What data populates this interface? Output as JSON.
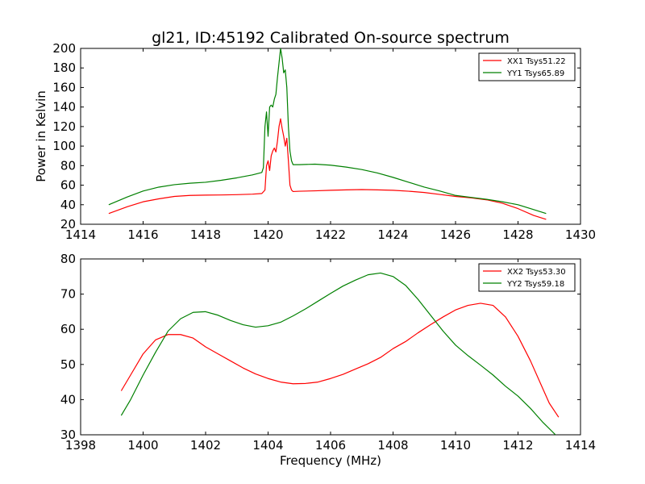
{
  "chart_data": [
    {
      "type": "line",
      "title": "gl21, ID:45192 Calibrated On-source spectrum",
      "xlabel": "",
      "ylabel": "Power in Kelvin",
      "xlim": [
        1414,
        1430
      ],
      "ylim": [
        20,
        200
      ],
      "xticks": [
        "1414",
        "1416",
        "1418",
        "1420",
        "1422",
        "1424",
        "1426",
        "1428",
        "1430"
      ],
      "yticks": [
        "20",
        "40",
        "60",
        "80",
        "100",
        "120",
        "140",
        "160",
        "180",
        "200"
      ],
      "grid": false,
      "legend_position": "top-right",
      "series": [
        {
          "name": "XX1 Tsys51.22",
          "color": "#ff0000",
          "points": [
            [
              1414.9,
              31
            ],
            [
              1415.5,
              38
            ],
            [
              1416.0,
              43
            ],
            [
              1416.5,
              46
            ],
            [
              1417.0,
              48.5
            ],
            [
              1417.5,
              49.5
            ],
            [
              1418.0,
              49.8
            ],
            [
              1418.5,
              50
            ],
            [
              1419.0,
              50.3
            ],
            [
              1419.5,
              50.8
            ],
            [
              1419.8,
              51.5
            ],
            [
              1419.9,
              55
            ],
            [
              1419.95,
              80
            ],
            [
              1420.0,
              85
            ],
            [
              1420.05,
              75
            ],
            [
              1420.1,
              90
            ],
            [
              1420.15,
              95
            ],
            [
              1420.2,
              98
            ],
            [
              1420.25,
              94
            ],
            [
              1420.3,
              105
            ],
            [
              1420.35,
              120
            ],
            [
              1420.4,
              128
            ],
            [
              1420.45,
              118
            ],
            [
              1420.5,
              110
            ],
            [
              1420.55,
              100
            ],
            [
              1420.6,
              108
            ],
            [
              1420.65,
              85
            ],
            [
              1420.7,
              60
            ],
            [
              1420.75,
              55
            ],
            [
              1420.8,
              53.5
            ],
            [
              1421.0,
              53.8
            ],
            [
              1421.5,
              54.2
            ],
            [
              1422.0,
              54.8
            ],
            [
              1422.5,
              55.2
            ],
            [
              1423.0,
              55.5
            ],
            [
              1423.5,
              55.2
            ],
            [
              1424.0,
              54.8
            ],
            [
              1424.5,
              53.8
            ],
            [
              1425.0,
              52.5
            ],
            [
              1425.5,
              50.5
            ],
            [
              1426.0,
              48.5
            ],
            [
              1426.5,
              47
            ],
            [
              1427.0,
              45
            ],
            [
              1427.5,
              41.5
            ],
            [
              1428.0,
              36
            ],
            [
              1428.5,
              29
            ],
            [
              1428.9,
              25
            ]
          ]
        },
        {
          "name": "YY1 Tsys65.89",
          "color": "#008000",
          "points": [
            [
              1414.9,
              40
            ],
            [
              1415.5,
              48
            ],
            [
              1416.0,
              54
            ],
            [
              1416.5,
              58
            ],
            [
              1417.0,
              60.5
            ],
            [
              1417.5,
              62
            ],
            [
              1418.0,
              63
            ],
            [
              1418.5,
              65
            ],
            [
              1419.0,
              67.5
            ],
            [
              1419.5,
              70.5
            ],
            [
              1419.8,
              73
            ],
            [
              1419.85,
              78
            ],
            [
              1419.9,
              120
            ],
            [
              1419.95,
              135
            ],
            [
              1420.0,
              110
            ],
            [
              1420.05,
              140
            ],
            [
              1420.1,
              142
            ],
            [
              1420.15,
              140
            ],
            [
              1420.2,
              148
            ],
            [
              1420.25,
              153
            ],
            [
              1420.3,
              170
            ],
            [
              1420.35,
              185
            ],
            [
              1420.4,
              200
            ],
            [
              1420.45,
              190
            ],
            [
              1420.5,
              175
            ],
            [
              1420.55,
              178
            ],
            [
              1420.6,
              160
            ],
            [
              1420.65,
              120
            ],
            [
              1420.7,
              95
            ],
            [
              1420.75,
              85
            ],
            [
              1420.8,
              81
            ],
            [
              1421.0,
              81
            ],
            [
              1421.5,
              81.5
            ],
            [
              1422.0,
              80.5
            ],
            [
              1422.5,
              78.5
            ],
            [
              1423.0,
              76
            ],
            [
              1423.5,
              72.5
            ],
            [
              1424.0,
              68
            ],
            [
              1424.5,
              63
            ],
            [
              1425.0,
              58
            ],
            [
              1425.5,
              54
            ],
            [
              1426.0,
              49.5
            ],
            [
              1426.5,
              47.5
            ],
            [
              1427.0,
              45.5
            ],
            [
              1427.5,
              43
            ],
            [
              1428.0,
              40
            ],
            [
              1428.5,
              35
            ],
            [
              1428.9,
              31
            ]
          ]
        }
      ]
    },
    {
      "type": "line",
      "title": "",
      "xlabel": "Frequency (MHz)",
      "ylabel": "",
      "xlim": [
        1398,
        1414
      ],
      "ylim": [
        30,
        80
      ],
      "xticks": [
        "1398",
        "1400",
        "1402",
        "1404",
        "1406",
        "1408",
        "1410",
        "1412",
        "1414"
      ],
      "yticks": [
        "30",
        "40",
        "50",
        "60",
        "70",
        "80"
      ],
      "grid": false,
      "legend_position": "top-right",
      "series": [
        {
          "name": "XX2 Tsys53.30",
          "color": "#ff0000",
          "points": [
            [
              1399.3,
              42.5
            ],
            [
              1399.6,
              47
            ],
            [
              1400.0,
              53
            ],
            [
              1400.4,
              57
            ],
            [
              1400.8,
              58.5
            ],
            [
              1401.2,
              58.5
            ],
            [
              1401.6,
              57.5
            ],
            [
              1402.0,
              55
            ],
            [
              1402.4,
              53
            ],
            [
              1402.8,
              51
            ],
            [
              1403.2,
              49
            ],
            [
              1403.6,
              47.3
            ],
            [
              1404.0,
              46
            ],
            [
              1404.4,
              45
            ],
            [
              1404.8,
              44.5
            ],
            [
              1405.2,
              44.6
            ],
            [
              1405.6,
              45
            ],
            [
              1406.0,
              46
            ],
            [
              1406.4,
              47.2
            ],
            [
              1406.8,
              48.7
            ],
            [
              1407.2,
              50.2
            ],
            [
              1407.6,
              52
            ],
            [
              1408.0,
              54.5
            ],
            [
              1408.4,
              56.5
            ],
            [
              1408.8,
              59
            ],
            [
              1409.2,
              61.3
            ],
            [
              1409.6,
              63.5
            ],
            [
              1410.0,
              65.5
            ],
            [
              1410.4,
              66.8
            ],
            [
              1410.8,
              67.4
            ],
            [
              1411.2,
              66.8
            ],
            [
              1411.6,
              63.5
            ],
            [
              1412.0,
              58
            ],
            [
              1412.4,
              51
            ],
            [
              1412.8,
              43
            ],
            [
              1413.0,
              39
            ],
            [
              1413.3,
              35
            ]
          ]
        },
        {
          "name": "YY2 Tsys59.18",
          "color": "#008000",
          "points": [
            [
              1399.3,
              35.5
            ],
            [
              1399.6,
              40
            ],
            [
              1400.0,
              47
            ],
            [
              1400.4,
              53.5
            ],
            [
              1400.8,
              59.5
            ],
            [
              1401.2,
              63
            ],
            [
              1401.6,
              64.8
            ],
            [
              1402.0,
              65
            ],
            [
              1402.4,
              64
            ],
            [
              1402.8,
              62.5
            ],
            [
              1403.2,
              61.3
            ],
            [
              1403.6,
              60.6
            ],
            [
              1404.0,
              61
            ],
            [
              1404.4,
              62
            ],
            [
              1404.8,
              63.8
            ],
            [
              1405.2,
              65.8
            ],
            [
              1405.6,
              68
            ],
            [
              1406.0,
              70.2
            ],
            [
              1406.4,
              72.3
            ],
            [
              1406.8,
              74
            ],
            [
              1407.2,
              75.5
            ],
            [
              1407.6,
              76
            ],
            [
              1408.0,
              75
            ],
            [
              1408.4,
              72.5
            ],
            [
              1408.8,
              68.5
            ],
            [
              1409.2,
              64
            ],
            [
              1409.6,
              59.5
            ],
            [
              1410.0,
              55.5
            ],
            [
              1410.4,
              52.5
            ],
            [
              1410.8,
              49.8
            ],
            [
              1411.2,
              47
            ],
            [
              1411.6,
              43.8
            ],
            [
              1412.0,
              41
            ],
            [
              1412.4,
              37.5
            ],
            [
              1412.8,
              33.5
            ],
            [
              1413.2,
              30
            ]
          ]
        }
      ]
    }
  ]
}
